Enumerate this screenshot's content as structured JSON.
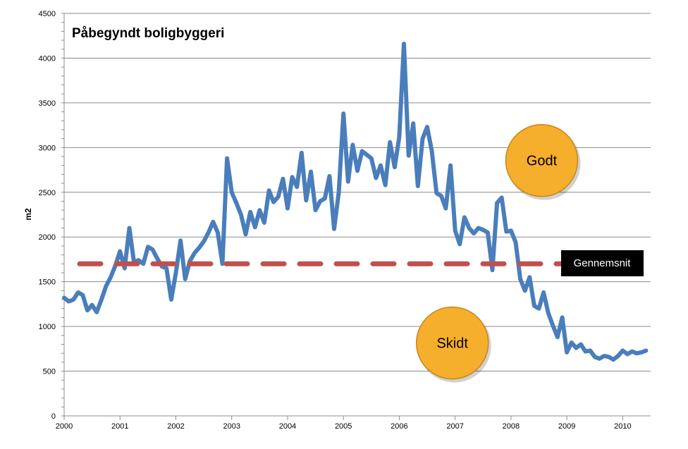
{
  "chart_data": {
    "type": "line",
    "title": "Påbegyndt boligbyggeri",
    "xlabel": "",
    "ylabel": "m2",
    "ylim": [
      0,
      4500
    ],
    "yticks": [
      0,
      500,
      1000,
      1500,
      2000,
      2500,
      3000,
      3500,
      4000,
      4500
    ],
    "xlim": [
      2000,
      2010.5
    ],
    "xticks": [
      "2000",
      "2001",
      "2002",
      "2003",
      "2004",
      "2005",
      "2006",
      "2007",
      "2008",
      "2009",
      "2010"
    ],
    "grid": "horizontal",
    "series": [
      {
        "color": "#4a7ebb",
        "x": [
          2000.0,
          2000.083,
          2000.167,
          2000.25,
          2000.333,
          2000.417,
          2000.5,
          2000.583,
          2000.667,
          2000.75,
          2000.833,
          2000.917,
          2001.0,
          2001.083,
          2001.167,
          2001.25,
          2001.333,
          2001.417,
          2001.5,
          2001.583,
          2001.667,
          2001.75,
          2001.833,
          2001.917,
          2002.0,
          2002.083,
          2002.167,
          2002.25,
          2002.333,
          2002.417,
          2002.5,
          2002.583,
          2002.667,
          2002.75,
          2002.833,
          2002.917,
          2003.0,
          2003.083,
          2003.167,
          2003.25,
          2003.333,
          2003.417,
          2003.5,
          2003.583,
          2003.667,
          2003.75,
          2003.833,
          2003.917,
          2004.0,
          2004.083,
          2004.167,
          2004.25,
          2004.333,
          2004.417,
          2004.5,
          2004.583,
          2004.667,
          2004.75,
          2004.833,
          2004.917,
          2005.0,
          2005.083,
          2005.167,
          2005.25,
          2005.333,
          2005.417,
          2005.5,
          2005.583,
          2005.667,
          2005.75,
          2005.833,
          2005.917,
          2006.0,
          2006.083,
          2006.167,
          2006.25,
          2006.333,
          2006.417,
          2006.5,
          2006.583,
          2006.667,
          2006.75,
          2006.833,
          2006.917,
          2007.0,
          2007.083,
          2007.167,
          2007.25,
          2007.333,
          2007.417,
          2007.5,
          2007.583,
          2007.667,
          2007.75,
          2007.833,
          2007.917,
          2008.0,
          2008.083,
          2008.167,
          2008.25,
          2008.333,
          2008.417,
          2008.5,
          2008.583,
          2008.667,
          2008.75,
          2008.833,
          2008.917,
          2009.0,
          2009.083,
          2009.167,
          2009.25,
          2009.333,
          2009.417,
          2009.5,
          2009.583,
          2009.667,
          2009.75,
          2009.833,
          2009.917,
          2010.0,
          2010.083,
          2010.167,
          2010.25,
          2010.333,
          2010.417
        ],
        "values": [
          1320,
          1280,
          1300,
          1380,
          1350,
          1180,
          1240,
          1160,
          1300,
          1450,
          1550,
          1680,
          1840,
          1650,
          2100,
          1720,
          1740,
          1700,
          1890,
          1860,
          1760,
          1670,
          1650,
          1300,
          1600,
          1960,
          1530,
          1730,
          1820,
          1880,
          1950,
          2050,
          2170,
          2050,
          1700,
          2880,
          2500,
          2380,
          2250,
          2030,
          2280,
          2110,
          2300,
          2160,
          2520,
          2390,
          2450,
          2650,
          2320,
          2670,
          2560,
          2940,
          2410,
          2730,
          2300,
          2400,
          2430,
          2680,
          2090,
          2500,
          3380,
          2620,
          3030,
          2740,
          2960,
          2920,
          2880,
          2660,
          2800,
          2580,
          3060,
          2780,
          3120,
          4160,
          2910,
          3270,
          2570,
          3100,
          3230,
          2960,
          2490,
          2460,
          2320,
          2800,
          2070,
          1920,
          2220,
          2100,
          2040,
          2100,
          2080,
          2050,
          1630,
          2380,
          2440,
          2060,
          2070,
          1940,
          1530,
          1400,
          1550,
          1230,
          1200,
          1380,
          1150,
          1010,
          880,
          1100,
          710,
          820,
          760,
          800,
          720,
          730,
          660,
          640,
          670,
          660,
          630,
          670,
          730,
          690,
          720,
          700,
          710,
          730
        ]
      }
    ],
    "reference_line": {
      "value": 1700,
      "color": "#c0504d",
      "style": "dashed",
      "label": "Gennemsnit"
    },
    "annotations": [
      {
        "text": "Godt",
        "x": 2008.55,
        "y": 2855,
        "color": "#f6ae2d"
      },
      {
        "text": "Skidt",
        "x": 2006.95,
        "y": 815,
        "color": "#f6ae2d"
      }
    ]
  }
}
